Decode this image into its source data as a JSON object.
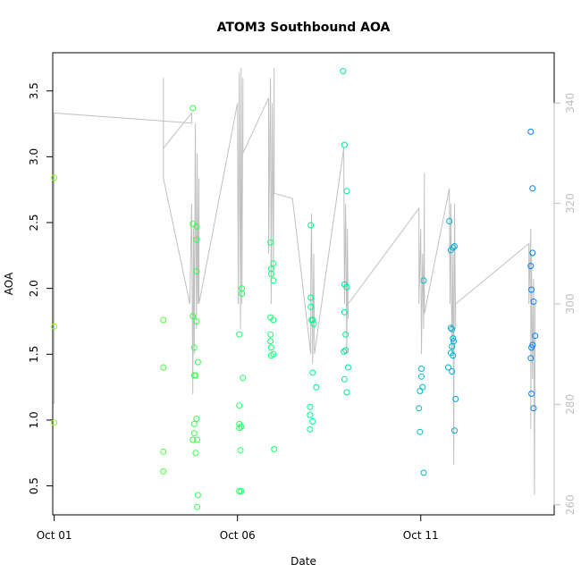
{
  "chart_data": {
    "type": "scatter",
    "title": "ATOM3 Southbound AOA",
    "xlabel": "Date",
    "ylabel": "AOA",
    "x_unit": "day of October",
    "xlim": [
      0.96,
      14.64
    ],
    "ylim": [
      0.28,
      3.79
    ],
    "y2lim": [
      258,
      350
    ],
    "x_ticks": [
      {
        "value": 1,
        "label": "Oct 01"
      },
      {
        "value": 6,
        "label": "Oct 06"
      },
      {
        "value": 11,
        "label": "Oct 11"
      }
    ],
    "y_ticks": [
      0.5,
      1.0,
      1.5,
      2.0,
      2.5,
      3.0,
      3.5
    ],
    "y_tick_labels": [
      "0.5",
      "1.0",
      "1.5",
      "2.0",
      "2.5",
      "3.0",
      "3.5"
    ],
    "y2_ticks": [
      260,
      280,
      300,
      320,
      340
    ],
    "y2_tick_labels": [
      "260",
      "280",
      "300",
      "320",
      "340"
    ],
    "grid": false,
    "legend": "none",
    "colors": {
      "line_series": "#c0c0c0",
      "points_start": "#80ff00",
      "points_mid": "#00ff80",
      "points_end": "#0080ff",
      "axis": "#000000",
      "right_axis": "#bfbfbf"
    },
    "series": [
      {
        "kind": "points",
        "axis": "left",
        "points": [
          {
            "x": 1.0,
            "y": 2.84
          },
          {
            "x": 1.0,
            "y": 1.71
          },
          {
            "x": 1.0,
            "y": 0.98
          },
          {
            "x": 3.98,
            "y": 1.76
          },
          {
            "x": 3.98,
            "y": 1.4
          },
          {
            "x": 3.98,
            "y": 0.76
          },
          {
            "x": 3.98,
            "y": 0.61
          },
          {
            "x": 4.78,
            "y": 3.37
          },
          {
            "x": 4.78,
            "y": 2.49
          },
          {
            "x": 4.78,
            "y": 1.79
          },
          {
            "x": 4.82,
            "y": 1.55
          },
          {
            "x": 4.82,
            "y": 1.34
          },
          {
            "x": 4.82,
            "y": 0.97
          },
          {
            "x": 4.82,
            "y": 0.9
          },
          {
            "x": 4.78,
            "y": 0.85
          },
          {
            "x": 4.88,
            "y": 2.47
          },
          {
            "x": 4.88,
            "y": 2.37
          },
          {
            "x": 4.88,
            "y": 2.13
          },
          {
            "x": 4.88,
            "y": 1.75
          },
          {
            "x": 4.86,
            "y": 1.34
          },
          {
            "x": 4.88,
            "y": 1.01
          },
          {
            "x": 4.9,
            "y": 0.85
          },
          {
            "x": 4.86,
            "y": 0.75
          },
          {
            "x": 4.92,
            "y": 1.44
          },
          {
            "x": 4.92,
            "y": 0.43
          },
          {
            "x": 4.9,
            "y": 0.34
          },
          {
            "x": 6.05,
            "y": 1.65
          },
          {
            "x": 6.05,
            "y": 1.11
          },
          {
            "x": 6.05,
            "y": 0.97
          },
          {
            "x": 6.05,
            "y": 0.94
          },
          {
            "x": 6.08,
            "y": 0.77
          },
          {
            "x": 6.05,
            "y": 0.46
          },
          {
            "x": 6.1,
            "y": 0.46
          },
          {
            "x": 6.12,
            "y": 2.0
          },
          {
            "x": 6.12,
            "y": 1.96
          },
          {
            "x": 6.15,
            "y": 1.32
          },
          {
            "x": 6.1,
            "y": 0.95
          },
          {
            "x": 6.9,
            "y": 2.35
          },
          {
            "x": 6.92,
            "y": 2.15
          },
          {
            "x": 6.92,
            "y": 2.11
          },
          {
            "x": 6.98,
            "y": 2.19
          },
          {
            "x": 6.98,
            "y": 2.06
          },
          {
            "x": 6.9,
            "y": 1.78
          },
          {
            "x": 6.98,
            "y": 1.76
          },
          {
            "x": 6.9,
            "y": 1.65
          },
          {
            "x": 6.9,
            "y": 1.6
          },
          {
            "x": 6.92,
            "y": 1.55
          },
          {
            "x": 6.98,
            "y": 1.5
          },
          {
            "x": 6.92,
            "y": 1.49
          },
          {
            "x": 7.0,
            "y": 0.78
          },
          {
            "x": 8.0,
            "y": 2.48
          },
          {
            "x": 8.0,
            "y": 1.93
          },
          {
            "x": 8.0,
            "y": 1.86
          },
          {
            "x": 8.02,
            "y": 1.76
          },
          {
            "x": 8.05,
            "y": 1.76
          },
          {
            "x": 8.08,
            "y": 1.73
          },
          {
            "x": 8.05,
            "y": 1.36
          },
          {
            "x": 8.15,
            "y": 1.25
          },
          {
            "x": 7.98,
            "y": 1.1
          },
          {
            "x": 7.98,
            "y": 1.04
          },
          {
            "x": 8.05,
            "y": 0.99
          },
          {
            "x": 7.98,
            "y": 0.93
          },
          {
            "x": 8.88,
            "y": 3.65
          },
          {
            "x": 8.92,
            "y": 3.09
          },
          {
            "x": 8.98,
            "y": 2.74
          },
          {
            "x": 8.92,
            "y": 2.03
          },
          {
            "x": 8.98,
            "y": 2.01
          },
          {
            "x": 8.92,
            "y": 1.82
          },
          {
            "x": 8.95,
            "y": 1.65
          },
          {
            "x": 8.95,
            "y": 1.53
          },
          {
            "x": 8.9,
            "y": 1.52
          },
          {
            "x": 9.02,
            "y": 1.4
          },
          {
            "x": 8.92,
            "y": 1.31
          },
          {
            "x": 8.98,
            "y": 1.21
          },
          {
            "x": 11.08,
            "y": 2.06
          },
          {
            "x": 11.02,
            "y": 1.39
          },
          {
            "x": 11.02,
            "y": 1.33
          },
          {
            "x": 11.05,
            "y": 1.25
          },
          {
            "x": 10.98,
            "y": 1.22
          },
          {
            "x": 10.95,
            "y": 1.09
          },
          {
            "x": 10.98,
            "y": 0.91
          },
          {
            "x": 11.08,
            "y": 0.6
          },
          {
            "x": 11.78,
            "y": 2.51
          },
          {
            "x": 11.82,
            "y": 2.29
          },
          {
            "x": 11.88,
            "y": 2.31
          },
          {
            "x": 11.92,
            "y": 2.32
          },
          {
            "x": 11.82,
            "y": 1.7
          },
          {
            "x": 11.85,
            "y": 1.69
          },
          {
            "x": 11.88,
            "y": 1.62
          },
          {
            "x": 11.9,
            "y": 1.6
          },
          {
            "x": 11.85,
            "y": 1.56
          },
          {
            "x": 11.82,
            "y": 1.51
          },
          {
            "x": 11.88,
            "y": 1.49
          },
          {
            "x": 11.75,
            "y": 1.4
          },
          {
            "x": 11.85,
            "y": 1.37
          },
          {
            "x": 11.95,
            "y": 1.16
          },
          {
            "x": 11.92,
            "y": 0.92
          },
          {
            "x": 14.0,
            "y": 3.19
          },
          {
            "x": 14.05,
            "y": 2.76
          },
          {
            "x": 14.05,
            "y": 2.27
          },
          {
            "x": 14.0,
            "y": 2.17
          },
          {
            "x": 14.02,
            "y": 1.99
          },
          {
            "x": 14.08,
            "y": 1.9
          },
          {
            "x": 14.12,
            "y": 1.64
          },
          {
            "x": 14.05,
            "y": 1.57
          },
          {
            "x": 14.02,
            "y": 1.55
          },
          {
            "x": 14.0,
            "y": 1.47
          },
          {
            "x": 14.02,
            "y": 1.2
          },
          {
            "x": 14.08,
            "y": 1.09
          }
        ]
      },
      {
        "kind": "line",
        "axis": "right",
        "points": [
          {
            "x": 1.0,
            "y": 338
          },
          {
            "x": 1.0,
            "y": 280
          },
          {
            "x": 1.0,
            "y": 338
          },
          {
            "x": 4.75,
            "y": 336
          },
          {
            "x": 4.75,
            "y": 338
          },
          {
            "x": 3.98,
            "y": 331
          },
          {
            "x": 3.98,
            "y": 345
          },
          {
            "x": 3.98,
            "y": 325
          },
          {
            "x": 4.7,
            "y": 300
          },
          {
            "x": 4.75,
            "y": 320
          },
          {
            "x": 4.78,
            "y": 282
          },
          {
            "x": 4.8,
            "y": 315
          },
          {
            "x": 4.82,
            "y": 290
          },
          {
            "x": 4.85,
            "y": 336
          },
          {
            "x": 4.88,
            "y": 295
          },
          {
            "x": 4.9,
            "y": 330
          },
          {
            "x": 4.92,
            "y": 300
          },
          {
            "x": 4.95,
            "y": 325
          },
          {
            "x": 4.95,
            "y": 300
          },
          {
            "x": 6.0,
            "y": 340
          },
          {
            "x": 6.02,
            "y": 300
          },
          {
            "x": 6.05,
            "y": 346
          },
          {
            "x": 6.08,
            "y": 295
          },
          {
            "x": 6.1,
            "y": 347
          },
          {
            "x": 6.12,
            "y": 300
          },
          {
            "x": 6.15,
            "y": 345
          },
          {
            "x": 6.15,
            "y": 330
          },
          {
            "x": 6.85,
            "y": 341
          },
          {
            "x": 6.85,
            "y": 310
          },
          {
            "x": 6.9,
            "y": 345
          },
          {
            "x": 6.92,
            "y": 300
          },
          {
            "x": 6.95,
            "y": 340
          },
          {
            "x": 6.98,
            "y": 305
          },
          {
            "x": 7.0,
            "y": 347
          },
          {
            "x": 7.0,
            "y": 322
          },
          {
            "x": 7.5,
            "y": 321
          },
          {
            "x": 8.0,
            "y": 290
          },
          {
            "x": 8.0,
            "y": 305
          },
          {
            "x": 8.02,
            "y": 318
          },
          {
            "x": 8.05,
            "y": 288
          },
          {
            "x": 8.08,
            "y": 310
          },
          {
            "x": 8.1,
            "y": 290
          },
          {
            "x": 8.9,
            "y": 331
          },
          {
            "x": 8.92,
            "y": 300
          },
          {
            "x": 8.95,
            "y": 320
          },
          {
            "x": 8.98,
            "y": 290
          },
          {
            "x": 9.0,
            "y": 315
          },
          {
            "x": 9.02,
            "y": 297
          },
          {
            "x": 9.02,
            "y": 300
          },
          {
            "x": 10.95,
            "y": 319
          },
          {
            "x": 10.95,
            "y": 300
          },
          {
            "x": 11.0,
            "y": 315
          },
          {
            "x": 11.02,
            "y": 290
          },
          {
            "x": 11.05,
            "y": 310
          },
          {
            "x": 11.08,
            "y": 295
          },
          {
            "x": 11.1,
            "y": 326
          },
          {
            "x": 11.1,
            "y": 298
          },
          {
            "x": 11.78,
            "y": 323
          },
          {
            "x": 11.8,
            "y": 300
          },
          {
            "x": 11.82,
            "y": 320
          },
          {
            "x": 11.85,
            "y": 290
          },
          {
            "x": 11.88,
            "y": 310
          },
          {
            "x": 11.9,
            "y": 268
          },
          {
            "x": 11.92,
            "y": 320
          },
          {
            "x": 11.95,
            "y": 295
          },
          {
            "x": 11.95,
            "y": 300
          },
          {
            "x": 13.95,
            "y": 312
          },
          {
            "x": 13.95,
            "y": 300
          },
          {
            "x": 14.0,
            "y": 315
          },
          {
            "x": 14.0,
            "y": 275
          },
          {
            "x": 14.02,
            "y": 310
          },
          {
            "x": 14.05,
            "y": 285
          },
          {
            "x": 14.08,
            "y": 305
          },
          {
            "x": 14.1,
            "y": 262
          },
          {
            "x": 14.12,
            "y": 300
          }
        ]
      }
    ]
  }
}
